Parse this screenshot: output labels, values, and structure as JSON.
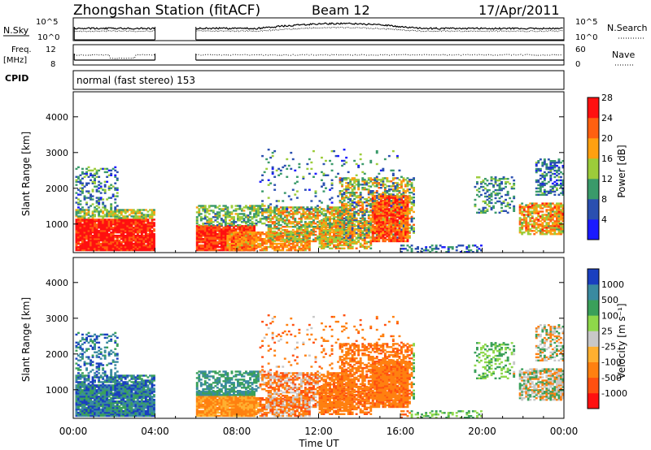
{
  "header": {
    "title": "Zhongshan Station (fitACF)",
    "beam": "Beam 12",
    "date": "17/Apr/2011"
  },
  "mini_panels": {
    "nsky_label": "N.Sky",
    "nsky_ticks": [
      "10^5",
      "10^0"
    ],
    "nsearch_label": "N.Search",
    "nsearch_ticks": [
      "10^5",
      "10^0"
    ],
    "freq_label_1": "Freq.",
    "freq_label_2": "[MHz]",
    "freq_ticks": [
      "12",
      "8"
    ],
    "nave_label": "Nave",
    "nave_ticks": [
      "60",
      "0"
    ],
    "cpid_label": "CPID",
    "cpid_value": "normal (fast stereo) 153"
  },
  "chart_data": [
    {
      "type": "heatmap",
      "title": "",
      "ylabel": "Slant Range [km]",
      "xlabel": "",
      "ylim": [
        200,
        4700
      ],
      "y_ticks": [
        "1000",
        "2000",
        "3000",
        "4000"
      ],
      "colorbar_label": "Power [dB]",
      "colorbar_ticks": [
        "4",
        "8",
        "12",
        "16",
        "20",
        "24",
        "28"
      ],
      "colors": [
        "#1a1aff",
        "#2a4fb0",
        "#3a9a6a",
        "#9ccc3a",
        "#ffa010",
        "#ff6010",
        "#ff1010"
      ],
      "data_gaps": [
        [
          4.0,
          6.0
        ]
      ]
    },
    {
      "type": "heatmap",
      "title": "",
      "ylabel": "Slant Range [km]",
      "xlabel": "Time UT",
      "ylim": [
        200,
        4700
      ],
      "y_ticks": [
        "1000",
        "2000",
        "3000",
        "4000"
      ],
      "x_ticks": [
        "00:00",
        "04:00",
        "08:00",
        "12:00",
        "16:00",
        "20:00",
        "00:00"
      ],
      "colorbar_label": "Velocity [m s⁻¹]",
      "colorbar_ticks": [
        "1000",
        "500",
        "100",
        "25",
        "-25",
        "-100",
        "-500",
        "-1000"
      ],
      "colors": [
        "#1a3fc0",
        "#3a8aa0",
        "#3aa05a",
        "#8ed84a",
        "#c8c8c8",
        "#ffb030",
        "#ff8010",
        "#ff5010",
        "#ff1010"
      ],
      "data_gaps": [
        [
          4.0,
          6.0
        ]
      ]
    }
  ]
}
